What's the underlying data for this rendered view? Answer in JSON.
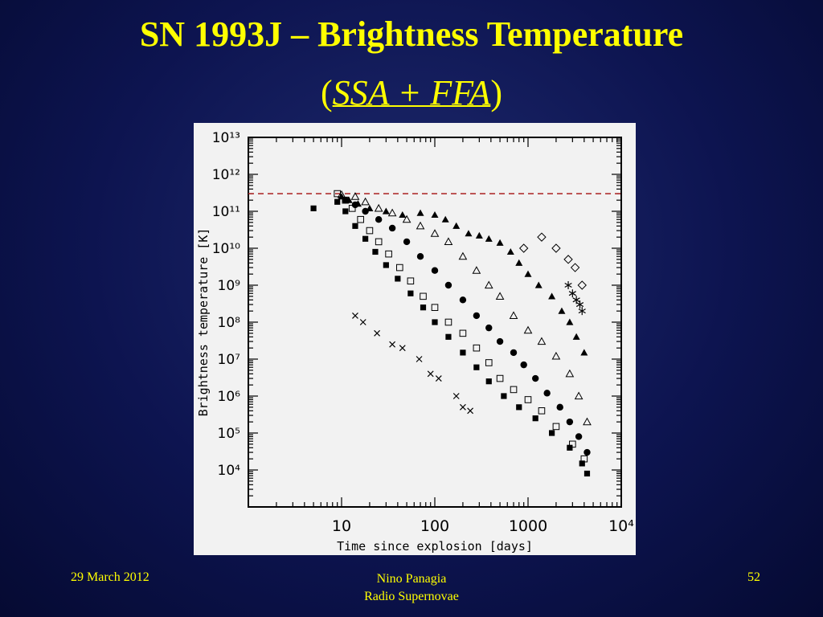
{
  "slide": {
    "title": "SN 1993J – Brightness Temperature",
    "subtitle_open": "(",
    "subtitle_italic": "SSA + FFA",
    "subtitle_close": ")",
    "date": "29 March 2012",
    "author": "Nino Panagia",
    "course": "Radio Supernovae",
    "page": "52"
  },
  "colors": {
    "background": "#0d1450",
    "title": "#ffff00",
    "limit_line": "#b03030"
  },
  "chart_data": {
    "type": "scatter",
    "title": "",
    "xlabel": "Time since explosion [days]",
    "ylabel": "Brightness temperature [K]",
    "xscale": "log",
    "yscale": "log",
    "xlim": [
      1,
      10000
    ],
    "ylim": [
      1000,
      10000000000000
    ],
    "x_ticks": [
      {
        "label": "10",
        "value": 10
      },
      {
        "label": "100",
        "value": 100
      },
      {
        "label": "1000",
        "value": 1000
      },
      {
        "label": "10⁴",
        "value": 10000
      }
    ],
    "y_ticks": [
      {
        "label": "10⁴",
        "value": 10000
      },
      {
        "label": "10⁵",
        "value": 100000
      },
      {
        "label": "10⁶",
        "value": 1000000
      },
      {
        "label": "10⁷",
        "value": 10000000
      },
      {
        "label": "10⁸",
        "value": 100000000
      },
      {
        "label": "10⁹",
        "value": 1000000000
      },
      {
        "label": "10¹⁰",
        "value": 10000000000
      },
      {
        "label": "10¹¹",
        "value": 100000000000
      },
      {
        "label": "10¹²",
        "value": 1000000000000
      },
      {
        "label": "10¹³",
        "value": 10000000000000
      }
    ],
    "reference_line": {
      "y": 300000000000,
      "style": "dashed",
      "color": "#b03030"
    },
    "series": [
      {
        "marker": "filled-triangle",
        "points": [
          [
            10,
            250000000000.0
          ],
          [
            12,
            200000000000.0
          ],
          [
            15,
            160000000000.0
          ],
          [
            20,
            120000000000.0
          ],
          [
            30,
            100000000000.0
          ],
          [
            45,
            80000000000.0
          ],
          [
            70,
            90000000000.0
          ],
          [
            100,
            80000000000.0
          ],
          [
            130,
            60000000000.0
          ],
          [
            170,
            40000000000.0
          ],
          [
            230,
            25000000000.0
          ],
          [
            300,
            22000000000.0
          ],
          [
            380,
            18000000000.0
          ],
          [
            500,
            14000000000.0
          ],
          [
            650,
            8000000000.0
          ],
          [
            800,
            4000000000.0
          ],
          [
            1000,
            2000000000.0
          ],
          [
            1300,
            1000000000.0
          ],
          [
            1800,
            500000000.0
          ],
          [
            2300,
            200000000.0
          ],
          [
            2800,
            100000000.0
          ],
          [
            3300,
            40000000.0
          ],
          [
            4000,
            15000000.0
          ]
        ]
      },
      {
        "marker": "open-triangle",
        "points": [
          [
            10,
            280000000000.0
          ],
          [
            14,
            250000000000.0
          ],
          [
            18,
            180000000000.0
          ],
          [
            25,
            120000000000.0
          ],
          [
            35,
            90000000000.0
          ],
          [
            50,
            60000000000.0
          ],
          [
            70,
            40000000000.0
          ],
          [
            100,
            25000000000.0
          ],
          [
            140,
            15000000000.0
          ],
          [
            200,
            6000000000.0
          ],
          [
            280,
            2500000000.0
          ],
          [
            380,
            1000000000.0
          ],
          [
            500,
            500000000.0
          ],
          [
            700,
            150000000.0
          ],
          [
            1000,
            60000000.0
          ],
          [
            1400,
            30000000.0
          ],
          [
            2000,
            12000000.0
          ],
          [
            2800,
            4000000.0
          ],
          [
            3500,
            1000000.0
          ],
          [
            4300,
            200000.0
          ]
        ]
      },
      {
        "marker": "filled-circle",
        "points": [
          [
            11,
            200000000000.0
          ],
          [
            14,
            150000000000.0
          ],
          [
            18,
            100000000000.0
          ],
          [
            25,
            60000000000.0
          ],
          [
            35,
            35000000000.0
          ],
          [
            50,
            15000000000.0
          ],
          [
            70,
            6000000000.0
          ],
          [
            100,
            2500000000.0
          ],
          [
            140,
            1000000000.0
          ],
          [
            200,
            400000000.0
          ],
          [
            280,
            150000000.0
          ],
          [
            380,
            70000000.0
          ],
          [
            500,
            30000000.0
          ],
          [
            700,
            15000000.0
          ],
          [
            900,
            7000000.0
          ],
          [
            1200,
            3000000.0
          ],
          [
            1600,
            1200000.0
          ],
          [
            2200,
            500000.0
          ],
          [
            2800,
            200000.0
          ],
          [
            3500,
            80000.0
          ],
          [
            4300,
            30000.0
          ]
        ]
      },
      {
        "marker": "open-square",
        "points": [
          [
            9,
            300000000000.0
          ],
          [
            11,
            200000000000.0
          ],
          [
            13,
            120000000000.0
          ],
          [
            16,
            60000000000.0
          ],
          [
            20,
            30000000000.0
          ],
          [
            25,
            15000000000.0
          ],
          [
            32,
            7000000000.0
          ],
          [
            42,
            3000000000.0
          ],
          [
            55,
            1300000000.0
          ],
          [
            75,
            500000000.0
          ],
          [
            100,
            250000000.0
          ],
          [
            140,
            100000000.0
          ],
          [
            200,
            50000000.0
          ],
          [
            280,
            20000000.0
          ],
          [
            380,
            8000000.0
          ],
          [
            500,
            3000000.0
          ],
          [
            700,
            1500000.0
          ],
          [
            1000,
            800000.0
          ],
          [
            1400,
            400000.0
          ],
          [
            2000,
            150000.0
          ],
          [
            3000,
            50000.0
          ],
          [
            4000,
            20000.0
          ]
        ]
      },
      {
        "marker": "filled-square",
        "points": [
          [
            5,
            120000000000.0
          ],
          [
            9,
            180000000000.0
          ],
          [
            11,
            100000000000.0
          ],
          [
            14,
            40000000000.0
          ],
          [
            18,
            18000000000.0
          ],
          [
            23,
            8000000000.0
          ],
          [
            30,
            3500000000.0
          ],
          [
            40,
            1500000000.0
          ],
          [
            55,
            600000000.0
          ],
          [
            75,
            250000000.0
          ],
          [
            100,
            100000000.0
          ],
          [
            140,
            40000000.0
          ],
          [
            200,
            15000000.0
          ],
          [
            280,
            6000000.0
          ],
          [
            380,
            2500000.0
          ],
          [
            550,
            1000000.0
          ],
          [
            800,
            500000.0
          ],
          [
            1200,
            250000.0
          ],
          [
            1800,
            100000.0
          ],
          [
            2800,
            40000.0
          ],
          [
            3800,
            15000.0
          ],
          [
            4300,
            8000.0
          ]
        ]
      },
      {
        "marker": "open-diamond",
        "points": [
          [
            900,
            10000000000.0
          ],
          [
            1400,
            20000000000.0
          ],
          [
            2000,
            10000000000.0
          ],
          [
            2700,
            5000000000.0
          ],
          [
            3200,
            3000000000.0
          ],
          [
            3800,
            1000000000.0
          ]
        ]
      },
      {
        "marker": "asterisk",
        "points": [
          [
            2700,
            1000000000.0
          ],
          [
            3000,
            600000000.0
          ],
          [
            3300,
            400000000.0
          ],
          [
            3600,
            300000000.0
          ],
          [
            3800,
            200000000.0
          ]
        ]
      },
      {
        "marker": "cross",
        "points": [
          [
            14,
            150000000.0
          ],
          [
            17,
            100000000.0
          ],
          [
            24,
            50000000.0
          ],
          [
            35,
            25000000.0
          ],
          [
            45,
            20000000.0
          ],
          [
            68,
            10000000.0
          ],
          [
            90,
            4000000.0
          ],
          [
            110,
            3000000.0
          ],
          [
            170,
            1000000.0
          ],
          [
            200,
            500000.0
          ],
          [
            240,
            400000.0
          ]
        ]
      }
    ]
  }
}
